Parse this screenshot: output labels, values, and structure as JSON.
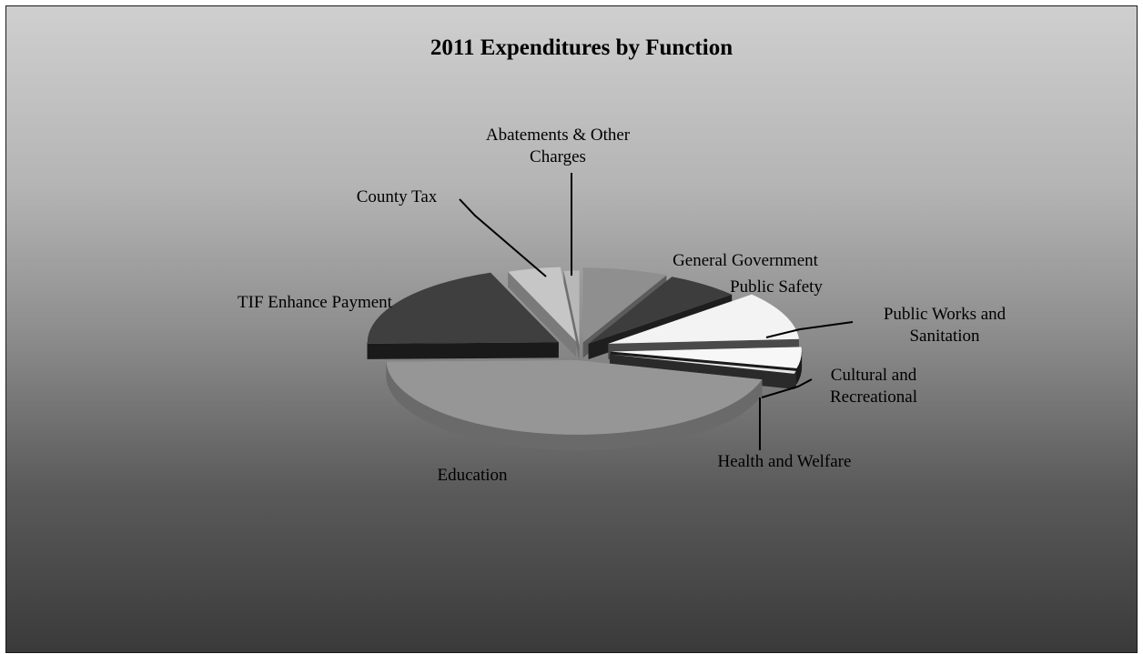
{
  "chart_data": {
    "type": "pie",
    "title": "2011 Expenditures by Function",
    "slices": [
      {
        "label": [
          "General Government"
        ],
        "value": 7.2,
        "color": "#8f8f8f",
        "side": "#5c5c5c",
        "explode": 16
      },
      {
        "label": [
          "Public Safety"
        ],
        "value": 6.3,
        "color": "#3d3d3d",
        "side": "#1e1e1e",
        "explode": 16
      },
      {
        "label": [
          "Public Works and",
          "Sanitation"
        ],
        "value": 10.5,
        "color": "#f3f3f3",
        "side": "#4a4a4a",
        "explode": 34
      },
      {
        "label": [
          "Cultural and",
          "Recreational"
        ],
        "value": 4.6,
        "color": "#f7f7f7",
        "side": "#1a1a1a",
        "explode": 34
      },
      {
        "label": [
          "Health and Welfare"
        ],
        "value": 0.6,
        "color": "#e6e6e6",
        "side": "#2a2a2a",
        "explode": 34
      },
      {
        "label": [
          "Education"
        ],
        "value": 45.5,
        "color": "#969696",
        "side": "#6a6a6a",
        "explode": 20
      },
      {
        "label": [
          "TIF Enhance Payment"
        ],
        "value": 19.5,
        "color": "#3f3f3f",
        "side": "#1a1a1a",
        "explode": 28
      },
      {
        "label": [
          "County Tax"
        ],
        "value": 4.5,
        "color": "#c6c6c6",
        "side": "#7a7a7a",
        "explode": 18
      },
      {
        "label": [
          "Abatements & Other",
          "Charges"
        ],
        "value": 1.3,
        "color": "#b8b8b8",
        "side": "#6f6f6f",
        "explode": 10
      }
    ]
  }
}
